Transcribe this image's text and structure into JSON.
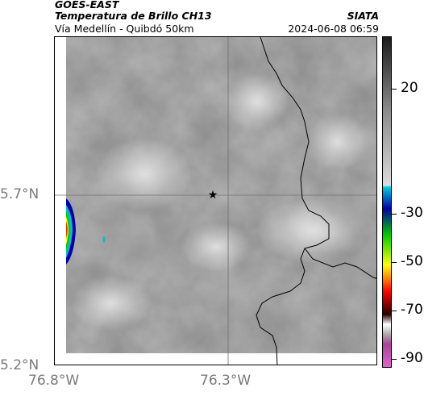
{
  "header": {
    "satellite": "GOES-EAST",
    "product": "Temperatura de Brillo CH13",
    "organization": "SIATA",
    "route": "Vía Medellín - Quibdó 50km",
    "datetime": "2024-06-08 06:59"
  },
  "map": {
    "latitude_labels": [
      "5.7°N",
      "5.2°N"
    ],
    "longitude_labels": [
      "76.8°W",
      "76.3°W"
    ],
    "marker": "star-icon",
    "background_color": "#9a9a9a"
  },
  "colorbar": {
    "tick_labels": [
      "20",
      "-30",
      "-50",
      "-70",
      "-90"
    ],
    "colors": [
      "#1a1a1a",
      "#8a8a8a",
      "#dcdcdc",
      "#00ccdd",
      "#0000aa",
      "#00cc00",
      "#ffff00",
      "#ff8800",
      "#ff0000",
      "#2a0000",
      "#ffffff",
      "#aa4499",
      "#dd66cc"
    ]
  }
}
